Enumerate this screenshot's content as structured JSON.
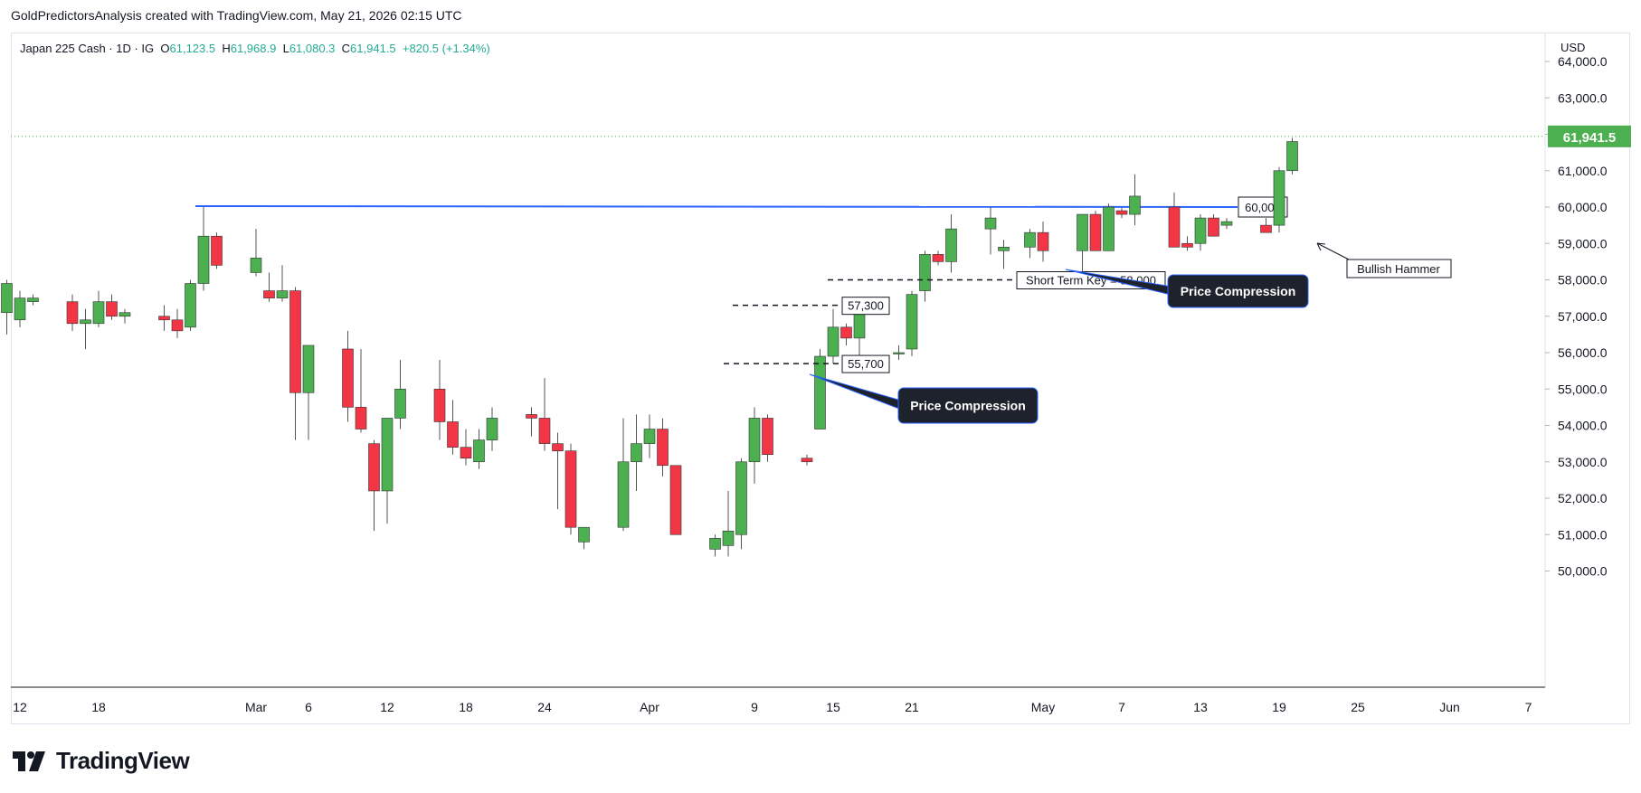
{
  "header": {
    "title": "GoldPredictorsAnalysis created with TradingView.com, May 21, 2026 02:15 UTC"
  },
  "legend": {
    "symbol": "Japan 225 Cash · 1D · IG",
    "open_label": "O",
    "open": "61,123.5",
    "high_label": "H",
    "high": "61,968.9",
    "low_label": "L",
    "low": "61,080.3",
    "close_label": "C",
    "close": "61,941.5",
    "change": "+820.5 (+1.34%)"
  },
  "currency": "USD",
  "brand": {
    "name": "TradingView"
  },
  "colors": {
    "up": "#4caf50",
    "down": "#f23645",
    "wick": "#555555",
    "resistance": "#2962ff",
    "price_line": "#4caf50",
    "callout_bg": "#1e222d"
  },
  "chart_data": {
    "type": "candlestick",
    "instrument": "Japan 225 Cash",
    "timeframe": "1D",
    "ylim": [
      49500,
      64300
    ],
    "y_ticks": [
      "50,000.0",
      "51,000.0",
      "52,000.0",
      "53,000.0",
      "54,000.0",
      "55,000.0",
      "56,000.0",
      "57,000.0",
      "58,000.0",
      "59,000.0",
      "60,000.0",
      "61,000.0",
      "62,000.0",
      "63,000.0",
      "64,000.0"
    ],
    "x_ticks": [
      {
        "label": "12",
        "date": "2026-02-12"
      },
      {
        "label": "18",
        "date": "2026-02-18"
      },
      {
        "label": "Mar",
        "date": "2026-03-02"
      },
      {
        "label": "6",
        "date": "2026-03-06"
      },
      {
        "label": "12",
        "date": "2026-03-12"
      },
      {
        "label": "18",
        "date": "2026-03-18"
      },
      {
        "label": "24",
        "date": "2026-03-24"
      },
      {
        "label": "Apr",
        "date": "2026-04-01"
      },
      {
        "label": "9",
        "date": "2026-04-09"
      },
      {
        "label": "15",
        "date": "2026-04-15"
      },
      {
        "label": "21",
        "date": "2026-04-21"
      },
      {
        "label": "May",
        "date": "2026-05-01"
      },
      {
        "label": "7",
        "date": "2026-05-07"
      },
      {
        "label": "13",
        "date": "2026-05-13"
      },
      {
        "label": "19",
        "date": "2026-05-19"
      },
      {
        "label": "25",
        "date": "2026-05-25"
      },
      {
        "label": "Jun",
        "date": "2026-06-01"
      },
      {
        "label": "7",
        "date": "2026-06-07"
      }
    ],
    "last_price": "61,941.5",
    "last_price_value": 61941.5,
    "candles": [
      {
        "date": "2026-02-11",
        "o": 57100,
        "h": 58000,
        "l": 56500,
        "c": 57900
      },
      {
        "date": "2026-02-12",
        "o": 56900,
        "h": 57700,
        "l": 56700,
        "c": 57500
      },
      {
        "date": "2026-02-13",
        "o": 57400,
        "h": 57600,
        "l": 57300,
        "c": 57500
      },
      {
        "date": "2026-02-16",
        "o": 57400,
        "h": 57600,
        "l": 56600,
        "c": 56800
      },
      {
        "date": "2026-02-17",
        "o": 56800,
        "h": 57200,
        "l": 56100,
        "c": 56900
      },
      {
        "date": "2026-02-18",
        "o": 56800,
        "h": 57700,
        "l": 56700,
        "c": 57400
      },
      {
        "date": "2026-02-19",
        "o": 57400,
        "h": 57600,
        "l": 56900,
        "c": 57000
      },
      {
        "date": "2026-02-20",
        "o": 57000,
        "h": 57200,
        "l": 56800,
        "c": 57100
      },
      {
        "date": "2026-02-23",
        "o": 57000,
        "h": 57300,
        "l": 56600,
        "c": 56900
      },
      {
        "date": "2026-02-24",
        "o": 56900,
        "h": 57200,
        "l": 56400,
        "c": 56600
      },
      {
        "date": "2026-02-25",
        "o": 56700,
        "h": 58000,
        "l": 56600,
        "c": 57900
      },
      {
        "date": "2026-02-26",
        "o": 57900,
        "h": 60000,
        "l": 57700,
        "c": 59200
      },
      {
        "date": "2026-02-27",
        "o": 59200,
        "h": 59300,
        "l": 58300,
        "c": 58400
      },
      {
        "date": "2026-03-02",
        "o": 58200,
        "h": 59400,
        "l": 58100,
        "c": 58600
      },
      {
        "date": "2026-03-03",
        "o": 57700,
        "h": 58200,
        "l": 57400,
        "c": 57500
      },
      {
        "date": "2026-03-04",
        "o": 57500,
        "h": 58400,
        "l": 57400,
        "c": 57700
      },
      {
        "date": "2026-03-05",
        "o": 57700,
        "h": 57800,
        "l": 53600,
        "c": 54900
      },
      {
        "date": "2026-03-06",
        "o": 54900,
        "h": 56200,
        "l": 53600,
        "c": 56200
      },
      {
        "date": "2026-03-09",
        "o": 56100,
        "h": 56600,
        "l": 54100,
        "c": 54500
      },
      {
        "date": "2026-03-10",
        "o": 54500,
        "h": 56100,
        "l": 53800,
        "c": 53900
      },
      {
        "date": "2026-03-11",
        "o": 53500,
        "h": 53600,
        "l": 51100,
        "c": 52200
      },
      {
        "date": "2026-03-12",
        "o": 52200,
        "h": 54200,
        "l": 51300,
        "c": 54200
      },
      {
        "date": "2026-03-13",
        "o": 54200,
        "h": 55800,
        "l": 53900,
        "c": 55000
      },
      {
        "date": "2026-03-16",
        "o": 55000,
        "h": 55800,
        "l": 53600,
        "c": 54100
      },
      {
        "date": "2026-03-17",
        "o": 54100,
        "h": 54700,
        "l": 53200,
        "c": 53400
      },
      {
        "date": "2026-03-18",
        "o": 53400,
        "h": 53900,
        "l": 52900,
        "c": 53100
      },
      {
        "date": "2026-03-19",
        "o": 53000,
        "h": 53900,
        "l": 52800,
        "c": 53600
      },
      {
        "date": "2026-03-20",
        "o": 53600,
        "h": 54500,
        "l": 53300,
        "c": 54200
      },
      {
        "date": "2026-03-23",
        "o": 54300,
        "h": 54500,
        "l": 53700,
        "c": 54200
      },
      {
        "date": "2026-03-24",
        "o": 54200,
        "h": 55300,
        "l": 53300,
        "c": 53500
      },
      {
        "date": "2026-03-25",
        "o": 53500,
        "h": 53800,
        "l": 51700,
        "c": 53300
      },
      {
        "date": "2026-03-26",
        "o": 53300,
        "h": 53500,
        "l": 51000,
        "c": 51200
      },
      {
        "date": "2026-03-27",
        "o": 50800,
        "h": 51200,
        "l": 50600,
        "c": 51200
      },
      {
        "date": "2026-03-30",
        "o": 51200,
        "h": 54200,
        "l": 51100,
        "c": 53000
      },
      {
        "date": "2026-03-31",
        "o": 53000,
        "h": 54300,
        "l": 52200,
        "c": 53500
      },
      {
        "date": "2026-04-01",
        "o": 53500,
        "h": 54300,
        "l": 53100,
        "c": 53900
      },
      {
        "date": "2026-04-02",
        "o": 53900,
        "h": 54200,
        "l": 52600,
        "c": 52900
      },
      {
        "date": "2026-04-03",
        "o": 52900,
        "h": 52900,
        "l": 51000,
        "c": 51000
      },
      {
        "date": "2026-04-06",
        "o": 50600,
        "h": 51000,
        "l": 50400,
        "c": 50900
      },
      {
        "date": "2026-04-07",
        "o": 50700,
        "h": 52200,
        "l": 50400,
        "c": 51100
      },
      {
        "date": "2026-04-08",
        "o": 51000,
        "h": 53100,
        "l": 50600,
        "c": 53000
      },
      {
        "date": "2026-04-09",
        "o": 53000,
        "h": 54500,
        "l": 52400,
        "c": 54200
      },
      {
        "date": "2026-04-10",
        "o": 54200,
        "h": 54300,
        "l": 53000,
        "c": 53200
      },
      {
        "date": "2026-04-13",
        "o": 53100,
        "h": 53200,
        "l": 52900,
        "c": 53000
      },
      {
        "date": "2026-04-14",
        "o": 53900,
        "h": 56100,
        "l": 53900,
        "c": 55900
      },
      {
        "date": "2026-04-15",
        "o": 55900,
        "h": 57200,
        "l": 55700,
        "c": 56700
      },
      {
        "date": "2026-04-16",
        "o": 56700,
        "h": 56800,
        "l": 56200,
        "c": 56400
      },
      {
        "date": "2026-04-17",
        "o": 56400,
        "h": 57300,
        "l": 55800,
        "c": 57300
      },
      {
        "date": "2026-04-20",
        "o": 56000,
        "h": 56200,
        "l": 55800,
        "c": 56000
      },
      {
        "date": "2026-04-21",
        "o": 56100,
        "h": 57700,
        "l": 55900,
        "c": 57600
      },
      {
        "date": "2026-04-22",
        "o": 57700,
        "h": 58800,
        "l": 57400,
        "c": 58700
      },
      {
        "date": "2026-04-23",
        "o": 58700,
        "h": 58800,
        "l": 58400,
        "c": 58500
      },
      {
        "date": "2026-04-24",
        "o": 58500,
        "h": 59800,
        "l": 58200,
        "c": 59400
      },
      {
        "date": "2026-04-27",
        "o": 59400,
        "h": 60000,
        "l": 58700,
        "c": 59700
      },
      {
        "date": "2026-04-28",
        "o": 58800,
        "h": 59100,
        "l": 58300,
        "c": 58900
      },
      {
        "date": "2026-04-30",
        "o": 58900,
        "h": 59400,
        "l": 58600,
        "c": 59300
      },
      {
        "date": "2026-05-01",
        "o": 59300,
        "h": 59600,
        "l": 58500,
        "c": 58800
      },
      {
        "date": "2026-05-04",
        "o": 58800,
        "h": 59800,
        "l": 58200,
        "c": 59800
      },
      {
        "date": "2026-05-05",
        "o": 59800,
        "h": 59900,
        "l": 58900,
        "c": 58800
      },
      {
        "date": "2026-05-06",
        "o": 58800,
        "h": 60100,
        "l": 58800,
        "c": 60000
      },
      {
        "date": "2026-05-07",
        "o": 59900,
        "h": 60000,
        "l": 59700,
        "c": 59800
      },
      {
        "date": "2026-05-08",
        "o": 59800,
        "h": 60900,
        "l": 59500,
        "c": 60300
      },
      {
        "date": "2026-05-11",
        "o": 60000,
        "h": 60400,
        "l": 59000,
        "c": 58900
      },
      {
        "date": "2026-05-12",
        "o": 59000,
        "h": 59200,
        "l": 58800,
        "c": 58900
      },
      {
        "date": "2026-05-13",
        "o": 59000,
        "h": 59800,
        "l": 58800,
        "c": 59700
      },
      {
        "date": "2026-05-14",
        "o": 59700,
        "h": 59800,
        "l": 59300,
        "c": 59200
      },
      {
        "date": "2026-05-15",
        "o": 59500,
        "h": 59700,
        "l": 59400,
        "c": 59600
      },
      {
        "date": "2026-05-18",
        "o": 59500,
        "h": 59700,
        "l": 59300,
        "c": 59300
      },
      {
        "date": "2026-05-19",
        "o": 59500,
        "h": 61100,
        "l": 59300,
        "c": 61000
      },
      {
        "date": "2026-05-20",
        "o": 61000,
        "h": 61900,
        "l": 60900,
        "c": 61800
      }
    ],
    "resistance": {
      "value": 60000,
      "label": "60,000"
    },
    "levels": [
      {
        "label": "57,300",
        "value": 57300
      },
      {
        "label": "55,700",
        "value": 55700
      },
      {
        "label": "Short Term Key = 58,000",
        "value": 58000
      }
    ],
    "callouts": [
      "Price Compression",
      "Price Compression"
    ],
    "annotations": [
      "Bullish Hammer"
    ]
  }
}
